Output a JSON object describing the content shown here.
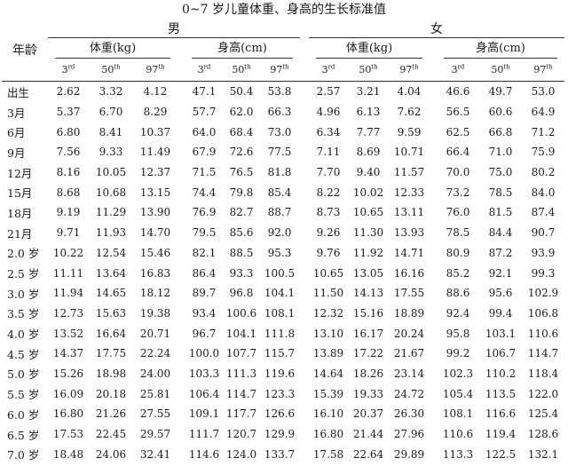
{
  "title": "0~7 岁儿童体重、身高的生长标准值",
  "header": {
    "age_label": "年龄",
    "male_label": "男",
    "female_label": "女",
    "weight_label": "体重(kg)",
    "height_label": "身高(cm)",
    "p3_num": "3",
    "p3_sup": "rd",
    "p50_num": "50",
    "p50_sup": "th",
    "p97_num": "97",
    "p97_sup": "th"
  },
  "rows": [
    {
      "age": "出生",
      "m_w": [
        "2.62",
        "3.32",
        "4.12"
      ],
      "m_h": [
        "47.1",
        "50.4",
        "53.8"
      ],
      "f_w": [
        "2.57",
        "3.21",
        "4.04"
      ],
      "f_h": [
        "46.6",
        "49.7",
        "53.0"
      ]
    },
    {
      "age": "3月",
      "m_w": [
        "5.37",
        "6.70",
        "8.29"
      ],
      "m_h": [
        "57.7",
        "62.0",
        "66.3"
      ],
      "f_w": [
        "4.96",
        "6.13",
        "7.62"
      ],
      "f_h": [
        "56.5",
        "60.6",
        "64.9"
      ]
    },
    {
      "age": "6月",
      "m_w": [
        "6.80",
        "8.41",
        "10.37"
      ],
      "m_h": [
        "64.0",
        "68.4",
        "73.0"
      ],
      "f_w": [
        "6.34",
        "7.77",
        "9.59"
      ],
      "f_h": [
        "62.5",
        "66.8",
        "71.2"
      ]
    },
    {
      "age": "9月",
      "m_w": [
        "7.56",
        "9.33",
        "11.49"
      ],
      "m_h": [
        "67.9",
        "72.6",
        "77.5"
      ],
      "f_w": [
        "7.11",
        "8.69",
        "10.71"
      ],
      "f_h": [
        "66.4",
        "71.0",
        "75.9"
      ]
    },
    {
      "age": "12月",
      "m_w": [
        "8.16",
        "10.05",
        "12.37"
      ],
      "m_h": [
        "71.5",
        "76.5",
        "81.8"
      ],
      "f_w": [
        "7.70",
        "9.40",
        "11.57"
      ],
      "f_h": [
        "70.0",
        "75.0",
        "80.2"
      ]
    },
    {
      "age": "15月",
      "m_w": [
        "8.68",
        "10.68",
        "13.15"
      ],
      "m_h": [
        "74.4",
        "79.8",
        "85.4"
      ],
      "f_w": [
        "8.22",
        "10.02",
        "12.33"
      ],
      "f_h": [
        "73.2",
        "78.5",
        "84.0"
      ]
    },
    {
      "age": "18月",
      "m_w": [
        "9.19",
        "11.29",
        "13.90"
      ],
      "m_h": [
        "76.9",
        "82.7",
        "88.7"
      ],
      "f_w": [
        "8.73",
        "10.65",
        "13.11"
      ],
      "f_h": [
        "76.0",
        "81.5",
        "87.4"
      ]
    },
    {
      "age": "21月",
      "m_w": [
        "9.71",
        "11.93",
        "14.70"
      ],
      "m_h": [
        "79.5",
        "85.6",
        "92.0"
      ],
      "f_w": [
        "9.26",
        "11.30",
        "13.93"
      ],
      "f_h": [
        "78.5",
        "84.4",
        "90.7"
      ]
    },
    {
      "age": "2.0 岁",
      "m_w": [
        "10.22",
        "12.54",
        "15.46"
      ],
      "m_h": [
        "82.1",
        "88.5",
        "95.3"
      ],
      "f_w": [
        "9.76",
        "11.92",
        "14.71"
      ],
      "f_h": [
        "80.9",
        "87.2",
        "93.9"
      ]
    },
    {
      "age": "2.5 岁",
      "m_w": [
        "11.11",
        "13.64",
        "16.83"
      ],
      "m_h": [
        "86.4",
        "93.3",
        "100.5"
      ],
      "f_w": [
        "10.65",
        "13.05",
        "16.16"
      ],
      "f_h": [
        "85.2",
        "92.1",
        "99.3"
      ]
    },
    {
      "age": "3.0 岁",
      "m_w": [
        "11.94",
        "14.65",
        "18.12"
      ],
      "m_h": [
        "89.7",
        "96.8",
        "104.1"
      ],
      "f_w": [
        "11.50",
        "14.13",
        "17.55"
      ],
      "f_h": [
        "88.6",
        "95.6",
        "102.9"
      ]
    },
    {
      "age": "3.5 岁",
      "m_w": [
        "12.73",
        "15.63",
        "19.38"
      ],
      "m_h": [
        "93.4",
        "100.6",
        "108.1"
      ],
      "f_w": [
        "12.32",
        "15.16",
        "18.89"
      ],
      "f_h": [
        "92.4",
        "99.4",
        "106.8"
      ]
    },
    {
      "age": "4.0 岁",
      "m_w": [
        "13.52",
        "16.64",
        "20.71"
      ],
      "m_h": [
        "96.7",
        "104.1",
        "111.8"
      ],
      "f_w": [
        "13.10",
        "16.17",
        "20.24"
      ],
      "f_h": [
        "95.8",
        "103.1",
        "110.6"
      ]
    },
    {
      "age": "4.5 岁",
      "m_w": [
        "14.37",
        "17.75",
        "22.24"
      ],
      "m_h": [
        "100.0",
        "107.7",
        "115.7"
      ],
      "f_w": [
        "13.89",
        "17.22",
        "21.67"
      ],
      "f_h": [
        "99.2",
        "106.7",
        "114.7"
      ]
    },
    {
      "age": "5.0 岁",
      "m_w": [
        "15.26",
        "18.98",
        "24.00"
      ],
      "m_h": [
        "103.3",
        "111.3",
        "119.6"
      ],
      "f_w": [
        "14.64",
        "18.26",
        "23.14"
      ],
      "f_h": [
        "102.3",
        "110.2",
        "118.4"
      ]
    },
    {
      "age": "5.5 岁",
      "m_w": [
        "16.09",
        "20.18",
        "25.81"
      ],
      "m_h": [
        "106.4",
        "114.7",
        "123.3"
      ],
      "f_w": [
        "15.39",
        "19.33",
        "24.72"
      ],
      "f_h": [
        "105.4",
        "113.5",
        "122.0"
      ]
    },
    {
      "age": "6.0 岁",
      "m_w": [
        "16.80",
        "21.26",
        "27.55"
      ],
      "m_h": [
        "109.1",
        "117.7",
        "126.6"
      ],
      "f_w": [
        "16.10",
        "20.37",
        "26.30"
      ],
      "f_h": [
        "108.1",
        "116.6",
        "125.4"
      ]
    },
    {
      "age": "6.5 岁",
      "m_w": [
        "17.53",
        "22.45",
        "29.57"
      ],
      "m_h": [
        "111.7",
        "120.7",
        "129.9"
      ],
      "f_w": [
        "16.80",
        "21.44",
        "27.96"
      ],
      "f_h": [
        "110.6",
        "119.4",
        "128.6"
      ]
    },
    {
      "age": "7.0 岁",
      "m_w": [
        "18.48",
        "24.06",
        "32.41"
      ],
      "m_h": [
        "114.6",
        "124.0",
        "133.7"
      ],
      "f_w": [
        "17.58",
        "22.64",
        "29.89"
      ],
      "f_h": [
        "113.3",
        "122.5",
        "132.1"
      ]
    }
  ]
}
